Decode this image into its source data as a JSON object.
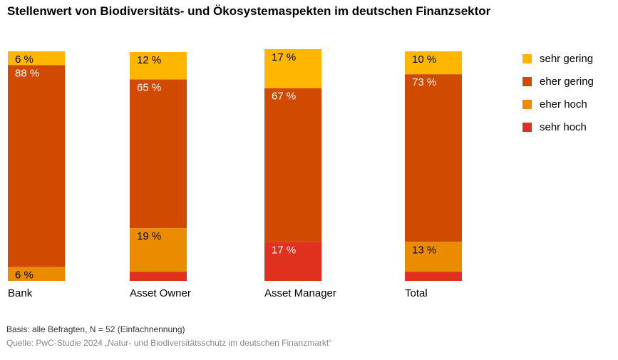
{
  "title": "Stellenwert von Biodiversitäts- und Ökosystemaspekten im deutschen Finanzsektor",
  "chart_data": {
    "type": "bar",
    "stacked": true,
    "categories": [
      "Bank",
      "Asset Owner",
      "Asset Manager",
      "Total"
    ],
    "series": [
      {
        "name": "sehr gering",
        "color": "#FFB600",
        "values": [
          6,
          12,
          17,
          10
        ]
      },
      {
        "name": "eher gering",
        "color": "#D04A02",
        "values": [
          88,
          65,
          67,
          73
        ]
      },
      {
        "name": "eher hoch",
        "color": "#EB8C00",
        "values": [
          6,
          19,
          0,
          13
        ]
      },
      {
        "name": "sehr hoch",
        "color": "#E0301E",
        "values": [
          0,
          4,
          17,
          4
        ]
      }
    ],
    "labels": [
      [
        "6 %",
        "88 %",
        "6 %",
        ""
      ],
      [
        "12 %",
        "65 %",
        "19 %",
        ""
      ],
      [
        "17 %",
        "67 %",
        "",
        "17 %"
      ],
      [
        "10 %",
        "73 %",
        "13 %",
        ""
      ]
    ],
    "label_colors": [
      "#000000",
      "#ffffff",
      "#000000",
      "#ffffff"
    ],
    "ylim": [
      0,
      100
    ],
    "legend_position": "right"
  },
  "legend": {
    "items": [
      {
        "label": "sehr gering",
        "color": "#FFB600"
      },
      {
        "label": "eher gering",
        "color": "#D04A02"
      },
      {
        "label": "eher hoch",
        "color": "#EB8C00"
      },
      {
        "label": "sehr hoch",
        "color": "#E0301E"
      }
    ]
  },
  "footer": {
    "basis": "Basis: alle Befragten, N = 52 (Einfachnennung)",
    "source": "Quelle: PwC-Studie 2024 „Natur- und Biodiversitätsschutz im deutschen Finanzmarkt“"
  }
}
